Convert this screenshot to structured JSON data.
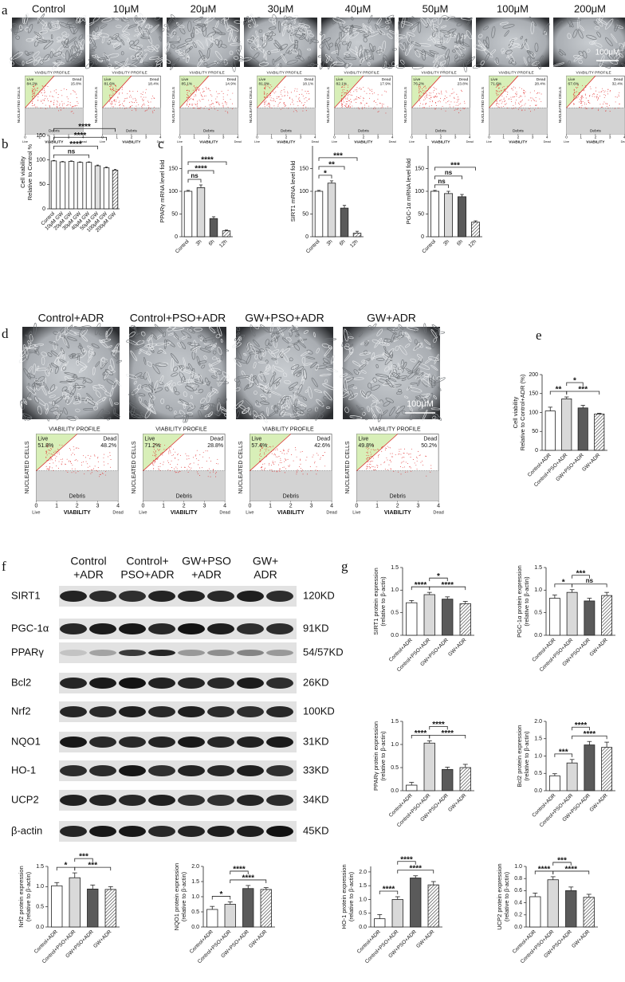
{
  "panel_letters": [
    "a",
    "b",
    "c",
    "d",
    "e",
    "f",
    "g"
  ],
  "profile_text": {
    "title": "VIABILITY PROFILE",
    "ylabel": "NUCLEATED CELLS",
    "xlabel": "VIABILITY",
    "live": "Live",
    "dead": "Dead",
    "debris": "Debris",
    "xticks": [
      0,
      1,
      2,
      3,
      4
    ]
  },
  "panel_a": {
    "conditions": [
      "Control",
      "10μM",
      "20μM",
      "30μM",
      "40μM",
      "50μM",
      "100μM",
      "200μM"
    ],
    "scale_bar": "100μM",
    "profiles": [
      {
        "live": "84.2%",
        "dead": "15.8%"
      },
      {
        "live": "81.6%",
        "dead": "18.4%"
      },
      {
        "live": "85.1%",
        "dead": "14.9%"
      },
      {
        "live": "81.9%",
        "dead": "18.1%"
      },
      {
        "live": "82.1%",
        "dead": "17.9%"
      },
      {
        "live": "76.2%",
        "dead": "23.8%"
      },
      {
        "live": "71.6%",
        "dead": "28.4%"
      },
      {
        "live": "67.6%",
        "dead": "32.4%"
      }
    ]
  },
  "panel_d": {
    "conditions": [
      "Control+ADR",
      "Control+PSO+ADR",
      "GW+PSO+ADR",
      "GW+ADR"
    ],
    "scale_bar": "100μM",
    "profiles": [
      {
        "live": "51.8%",
        "dead": "48.2%"
      },
      {
        "live": "71.2%",
        "dead": "28.8%"
      },
      {
        "live": "57.4%",
        "dead": "42.6%"
      },
      {
        "live": "49.8%",
        "dead": "50.2%"
      }
    ]
  },
  "panel_f": {
    "groups": [
      [
        "Control",
        "+ADR"
      ],
      [
        "Control+",
        "PSO+ADR"
      ],
      [
        "GW+PSO",
        "+ADR"
      ],
      [
        "GW+",
        "ADR"
      ]
    ],
    "rows": [
      {
        "protein": "SIRT1",
        "size": "120KD"
      },
      {
        "protein": "PGC-1α",
        "size": "91KD"
      },
      {
        "protein": "PPARγ",
        "size": "54/57KD"
      },
      {
        "protein": "Bcl2",
        "size": "26KD"
      },
      {
        "protein": "Nrf2",
        "size": "100KD"
      },
      {
        "protein": "NQO1",
        "size": "31KD"
      },
      {
        "protein": "HO-1",
        "size": "33KD"
      },
      {
        "protein": "UCP2",
        "size": "34KD"
      },
      {
        "protein": "β-actin",
        "size": "45KD"
      }
    ]
  },
  "chart_data": [
    {
      "type": "bar",
      "ylabel": [
        "Cell viability",
        "Relative to Control %"
      ],
      "categories": [
        "Control",
        "10μM GW",
        "20μM GW",
        "30μM GW",
        "40μM GW",
        "50μM GW",
        "100μM GW",
        "200μM GW"
      ],
      "values": [
        98,
        96,
        97,
        95,
        95,
        88,
        84,
        79
      ],
      "errors": [
        1,
        1,
        1,
        1,
        1,
        1.5,
        1.5,
        1.5
      ],
      "colors": [
        "#ffffff",
        "#ffffff",
        "#ffffff",
        "#ffffff",
        "#ffffff",
        "#e0e0e0",
        "#ffffff",
        "hatch"
      ],
      "ylim": [
        0,
        150
      ],
      "yticks": [
        0,
        50,
        100,
        150
      ],
      "comparisons": [
        {
          "groups": [
            "Control",
            "40μM GW"
          ],
          "label": "ns"
        },
        {
          "groups": [
            "Control",
            "50μM GW"
          ],
          "label": "****"
        },
        {
          "groups": [
            "Control",
            "100μM GW"
          ],
          "label": "****"
        },
        {
          "groups": [
            "Control",
            "200μM GW"
          ],
          "label": "****"
        }
      ]
    },
    {
      "type": "bar",
      "ylabel": [
        "PPARγ mRNA level fold"
      ],
      "categories": [
        "Control",
        "3h",
        "6h",
        "12h"
      ],
      "values": [
        100,
        108,
        40,
        13
      ],
      "errors": [
        2,
        6,
        4,
        2
      ],
      "colors": [
        "#ffffff",
        "#d9d9d9",
        "#5a5a5a",
        "hatch"
      ],
      "ylim": [
        0,
        200
      ],
      "yticks": [
        0,
        50,
        100,
        150
      ],
      "comparisons": [
        {
          "groups": [
            "Control",
            "3h"
          ],
          "label": "ns"
        },
        {
          "groups": [
            "Control",
            "6h"
          ],
          "label": "****"
        },
        {
          "groups": [
            "Control",
            "12h"
          ],
          "label": "****"
        }
      ]
    },
    {
      "type": "bar",
      "ylabel": [
        "SIRT1 mRNA level fold"
      ],
      "categories": [
        "Control",
        "3h",
        "6h",
        "12h"
      ],
      "values": [
        100,
        118,
        63,
        8
      ],
      "errors": [
        2,
        5,
        6,
        4
      ],
      "colors": [
        "#ffffff",
        "#d9d9d9",
        "#5a5a5a",
        "hatch"
      ],
      "ylim": [
        0,
        200
      ],
      "yticks": [
        0,
        50,
        100,
        150
      ],
      "comparisons": [
        {
          "groups": [
            "Control",
            "3h"
          ],
          "label": "*"
        },
        {
          "groups": [
            "Control",
            "6h"
          ],
          "label": "**"
        },
        {
          "groups": [
            "Control",
            "12h"
          ],
          "label": "***"
        }
      ]
    },
    {
      "type": "bar",
      "ylabel": [
        "PGC-1α mRNA level fold"
      ],
      "categories": [
        "Control",
        "3h",
        "6h",
        "12h"
      ],
      "values": [
        100,
        95,
        88,
        32
      ],
      "errors": [
        2,
        5,
        5,
        3
      ],
      "colors": [
        "#ffffff",
        "#d9d9d9",
        "#5a5a5a",
        "hatch"
      ],
      "ylim": [
        0,
        200
      ],
      "yticks": [
        0,
        50,
        100,
        150
      ],
      "comparisons": [
        {
          "groups": [
            "Control",
            "3h"
          ],
          "label": "ns"
        },
        {
          "groups": [
            "Control",
            "6h"
          ],
          "label": "ns"
        },
        {
          "groups": [
            "Control",
            "12h"
          ],
          "label": "***"
        }
      ]
    },
    {
      "type": "bar",
      "ylabel": [
        "Cell viability",
        "Relative to Control+ADR (%)"
      ],
      "categories": [
        "Control+ADR",
        "Control+PSO+ADR",
        "GW+PSO+ADR",
        "GW+ADR"
      ],
      "values": [
        104,
        136,
        112,
        96
      ],
      "errors": [
        10,
        5,
        7,
        2
      ],
      "colors": [
        "#ffffff",
        "#d9d9d9",
        "#5a5a5a",
        "hatch"
      ],
      "ylim": [
        0,
        200
      ],
      "yticks": [
        0,
        50,
        100,
        150,
        200
      ],
      "comparisons": [
        {
          "groups": [
            "Control+ADR",
            "Control+PSO+ADR"
          ],
          "label": "**"
        },
        {
          "groups": [
            "Control+PSO+ADR",
            "GW+ADR"
          ],
          "label": "***"
        },
        {
          "groups": [
            "Control+PSO+ADR",
            "GW+PSO+ADR"
          ],
          "label": "*"
        }
      ]
    },
    {
      "type": "bar",
      "ylabel": [
        "SIRT1 protein expression",
        "(relative to β-actin)"
      ],
      "categories": [
        "Control+ADR",
        "Control+PSO+ADR",
        "GW+PSO+ADR",
        "GW+ADR"
      ],
      "values": [
        0.72,
        0.9,
        0.8,
        0.7
      ],
      "errors": [
        0.05,
        0.05,
        0.05,
        0.05
      ],
      "colors": [
        "#ffffff",
        "#d9d9d9",
        "#5a5a5a",
        "hatch"
      ],
      "ylim": [
        0,
        1.5
      ],
      "yticks": [
        {
          "value": 0,
          "label": "0.0"
        },
        0.5,
        {
          "value": 1,
          "label": "1.0"
        },
        1.5
      ],
      "comparisons": [
        {
          "groups": [
            "Control+ADR",
            "Control+PSO+ADR"
          ],
          "label": "****"
        },
        {
          "groups": [
            "Control+PSO+ADR",
            "GW+ADR"
          ],
          "label": "****"
        },
        {
          "groups": [
            "Control+PSO+ADR",
            "GW+PSO+ADR"
          ],
          "label": "*"
        }
      ]
    },
    {
      "type": "bar",
      "ylabel": [
        "PGC-1α protein expression",
        "(relative to β-actin)"
      ],
      "categories": [
        "Control+ADR",
        "Control+PSO+ADR",
        "GW+PSO+ADR",
        "GW+ADR"
      ],
      "values": [
        0.82,
        0.95,
        0.76,
        0.88
      ],
      "errors": [
        0.07,
        0.06,
        0.06,
        0.07
      ],
      "colors": [
        "#ffffff",
        "#d9d9d9",
        "#5a5a5a",
        "hatch"
      ],
      "ylim": [
        0,
        1.5
      ],
      "yticks": [
        {
          "value": 0,
          "label": "0.0"
        },
        0.5,
        {
          "value": 1,
          "label": "1.0"
        },
        1.5
      ],
      "comparisons": [
        {
          "groups": [
            "Control+ADR",
            "Control+PSO+ADR"
          ],
          "label": "*"
        },
        {
          "groups": [
            "Control+PSO+ADR",
            "GW+ADR"
          ],
          "label": "ns"
        },
        {
          "groups": [
            "Control+PSO+ADR",
            "GW+PSO+ADR"
          ],
          "label": "***"
        }
      ]
    },
    {
      "type": "bar",
      "ylabel": [
        "PPARγ protein expression",
        "(relative to β-actin)"
      ],
      "categories": [
        "Control+ADR",
        "Control+PSO+ADR",
        "GW+PSO+ADR",
        "GW+ADR"
      ],
      "values": [
        0.12,
        1.03,
        0.46,
        0.5
      ],
      "errors": [
        0.06,
        0.05,
        0.05,
        0.07
      ],
      "colors": [
        "#ffffff",
        "#d9d9d9",
        "#5a5a5a",
        "hatch"
      ],
      "ylim": [
        0,
        1.5
      ],
      "yticks": [
        {
          "value": 0,
          "label": "0.0"
        },
        0.5,
        {
          "value": 1,
          "label": "1.0"
        },
        1.5
      ],
      "comparisons": [
        {
          "groups": [
            "Control+ADR",
            "Control+PSO+ADR"
          ],
          "label": "****"
        },
        {
          "groups": [
            "Control+PSO+ADR",
            "GW+ADR"
          ],
          "label": "****"
        },
        {
          "groups": [
            "Control+PSO+ADR",
            "GW+PSO+ADR"
          ],
          "label": "****"
        }
      ]
    },
    {
      "type": "bar",
      "ylabel": [
        "Bcl2 protein expression",
        "(relative to β-actin)"
      ],
      "categories": [
        "Control+ADR",
        "Control+PSO+ADR",
        "GW+PSO+ADR",
        "GW+ADR"
      ],
      "values": [
        0.43,
        0.8,
        1.32,
        1.25
      ],
      "errors": [
        0.06,
        0.1,
        0.1,
        0.15
      ],
      "colors": [
        "#ffffff",
        "#d9d9d9",
        "#5a5a5a",
        "hatch"
      ],
      "ylim": [
        0,
        2
      ],
      "yticks": [
        {
          "value": 0,
          "label": "0.0"
        },
        0.5,
        {
          "value": 1,
          "label": "1.0"
        },
        1.5,
        {
          "value": 2,
          "label": "2.0"
        }
      ],
      "comparisons": [
        {
          "groups": [
            "Control+ADR",
            "Control+PSO+ADR"
          ],
          "label": "***"
        },
        {
          "groups": [
            "Control+PSO+ADR",
            "GW+ADR"
          ],
          "label": "****"
        },
        {
          "groups": [
            "Control+PSO+ADR",
            "GW+PSO+ADR"
          ],
          "label": "****"
        }
      ]
    },
    {
      "type": "bar",
      "ylabel": [
        "Nrf2 protein expression",
        "(relative to β-actin)"
      ],
      "categories": [
        "Control+ADR",
        "Control+PSO+ADR",
        "GW+PSO+ADR",
        "GW+ADR"
      ],
      "values": [
        1.02,
        1.22,
        0.94,
        0.93
      ],
      "errors": [
        0.08,
        0.12,
        0.1,
        0.07
      ],
      "colors": [
        "#ffffff",
        "#d9d9d9",
        "#5a5a5a",
        "hatch"
      ],
      "ylim": [
        0,
        1.5
      ],
      "yticks": [
        {
          "value": 0,
          "label": "0.0"
        },
        0.5,
        {
          "value": 1,
          "label": "1.0"
        },
        1.5
      ],
      "comparisons": [
        {
          "groups": [
            "Control+ADR",
            "Control+PSO+ADR"
          ],
          "label": "*"
        },
        {
          "groups": [
            "Control+PSO+ADR",
            "GW+ADR"
          ],
          "label": "***"
        },
        {
          "groups": [
            "Control+PSO+ADR",
            "GW+PSO+ADR"
          ],
          "label": "***"
        }
      ]
    },
    {
      "type": "bar",
      "ylabel": [
        "NQO1 protein expression",
        "(relative to β-actin)"
      ],
      "categories": [
        "Control+ADR",
        "Control+PSO+ADR",
        "GW+PSO+ADR",
        "GW+ADR"
      ],
      "values": [
        0.58,
        0.75,
        1.27,
        1.24
      ],
      "errors": [
        0.1,
        0.08,
        0.1,
        0.06
      ],
      "colors": [
        "#ffffff",
        "#d9d9d9",
        "#5a5a5a",
        "hatch"
      ],
      "ylim": [
        0,
        2
      ],
      "yticks": [
        {
          "value": 0,
          "label": "0.0"
        },
        0.5,
        {
          "value": 1,
          "label": "1.0"
        },
        1.5,
        {
          "value": 2,
          "label": "2.0"
        }
      ],
      "comparisons": [
        {
          "groups": [
            "Control+ADR",
            "Control+PSO+ADR"
          ],
          "label": "*"
        },
        {
          "groups": [
            "Control+PSO+ADR",
            "GW+ADR"
          ],
          "label": "****"
        },
        {
          "groups": [
            "Control+PSO+ADR",
            "GW+PSO+ADR"
          ],
          "label": "****"
        }
      ]
    },
    {
      "type": "bar",
      "ylabel": [
        "HO-1 protein expression",
        "(relative to β-actin)"
      ],
      "categories": [
        "Control+ADR",
        "Control+PSO+ADR",
        "GW+PSO+ADR",
        "GW+ADR"
      ],
      "values": [
        0.3,
        1.0,
        1.78,
        1.53
      ],
      "errors": [
        0.15,
        0.1,
        0.08,
        0.12
      ],
      "colors": [
        "#ffffff",
        "#d9d9d9",
        "#5a5a5a",
        "hatch"
      ],
      "ylim": [
        0,
        2.2
      ],
      "yticks": [
        {
          "value": 0,
          "label": "0.0"
        },
        0.5,
        {
          "value": 1,
          "label": "1.0"
        },
        1.5,
        {
          "value": 2,
          "label": "2.0"
        }
      ],
      "comparisons": [
        {
          "groups": [
            "Control+ADR",
            "Control+PSO+ADR"
          ],
          "label": "****"
        },
        {
          "groups": [
            "Control+PSO+ADR",
            "GW+ADR"
          ],
          "label": "****"
        },
        {
          "groups": [
            "Control+PSO+ADR",
            "GW+PSO+ADR"
          ],
          "label": "****"
        }
      ]
    },
    {
      "type": "bar",
      "ylabel": [
        "UCP2 protein expression",
        "(relative to β-actin)"
      ],
      "categories": [
        "Control+ADR",
        "Control+PSO+ADR",
        "GW+PSO+ADR",
        "GW+ADR"
      ],
      "values": [
        0.5,
        0.78,
        0.6,
        0.49
      ],
      "errors": [
        0.06,
        0.05,
        0.06,
        0.05
      ],
      "colors": [
        "#ffffff",
        "#d9d9d9",
        "#5a5a5a",
        "hatch"
      ],
      "ylim": [
        0,
        1
      ],
      "yticks": [
        {
          "value": 0,
          "label": "0.0"
        },
        0.2,
        0.4,
        0.6,
        0.8,
        {
          "value": 1,
          "label": "1.0"
        }
      ],
      "comparisons": [
        {
          "groups": [
            "Control+ADR",
            "Control+PSO+ADR"
          ],
          "label": "****"
        },
        {
          "groups": [
            "Control+PSO+ADR",
            "GW+ADR"
          ],
          "label": "****"
        },
        {
          "groups": [
            "Control+PSO+ADR",
            "GW+PSO+ADR"
          ],
          "label": "***"
        }
      ]
    }
  ]
}
